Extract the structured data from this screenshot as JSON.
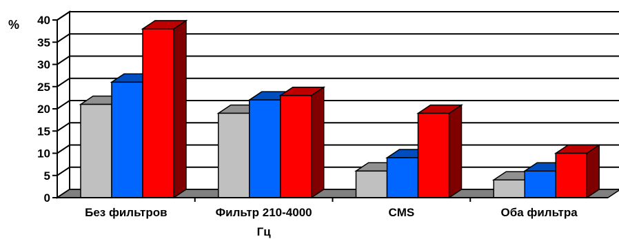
{
  "chart_data": {
    "type": "bar",
    "title": "",
    "xlabel": "",
    "ylabel": "%",
    "ylim": [
      0,
      40
    ],
    "yticks": [
      "0",
      "5",
      "10",
      "15",
      "20",
      "25",
      "30",
      "35",
      "40"
    ],
    "categories": [
      [
        "Без фильтров"
      ],
      [
        "Фильтр 210-4000",
        "Гц"
      ],
      [
        "CMS"
      ],
      [
        "Оба фильтра"
      ]
    ],
    "series": [
      {
        "values": [
          21,
          19,
          6,
          4
        ],
        "color": "#c0c0c0"
      },
      {
        "values": [
          26,
          22,
          9,
          6
        ],
        "color": "#0066ff"
      },
      {
        "values": [
          38,
          23,
          19,
          10
        ],
        "color": "#ff0000"
      }
    ],
    "grid": true,
    "legend": "none"
  }
}
